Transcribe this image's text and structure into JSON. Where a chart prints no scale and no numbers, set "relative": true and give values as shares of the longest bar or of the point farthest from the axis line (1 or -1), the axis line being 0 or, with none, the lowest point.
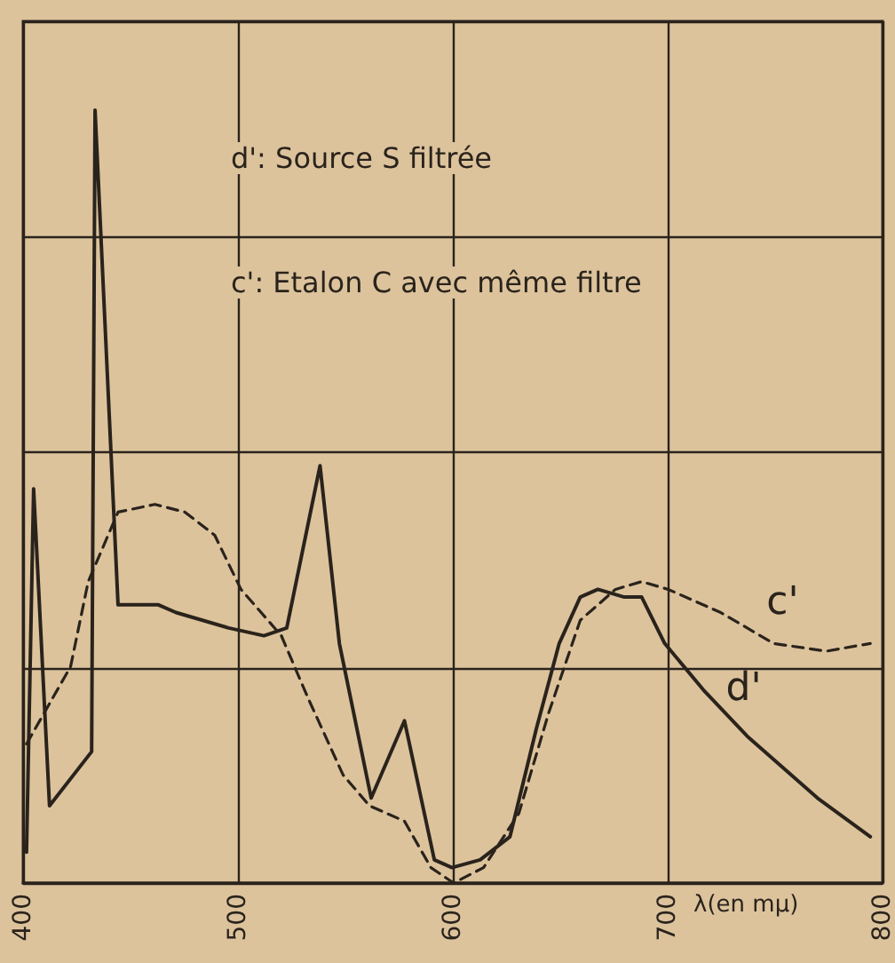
{
  "chart_data": {
    "type": "line",
    "relative": true,
    "xlabel": "λ(en mμ)",
    "xlim": [
      400,
      800
    ],
    "xticks": [
      400,
      500,
      600,
      700,
      800
    ],
    "grid": true,
    "legend": false,
    "marker": "none",
    "annotations": [
      "d': Source S filtrée",
      "c': Etalon C avec même filtre"
    ],
    "series": [
      {
        "name": "d'",
        "color": "#2a231c",
        "line_style": "solid",
        "x": [
          401.6,
          404.9,
          412.3,
          431.9,
          433.5,
          444.2,
          463.0,
          471.2,
          495.7,
          512.1,
          522.7,
          538.2,
          547.2,
          562.0,
          577.5,
          591.4,
          599.6,
          612.7,
          626.6,
          638.9,
          649.5,
          659.3,
          667.5,
          679.8,
          687.9,
          698.6,
          716.6,
          737.0,
          769.7,
          794.3
        ],
        "values": [
          0.04,
          0.51,
          0.1,
          0.17,
          1,
          0.36,
          0.36,
          0.35,
          0.33,
          0.32,
          0.33,
          0.54,
          0.31,
          0.11,
          0.21,
          0.03,
          0.02,
          0.03,
          0.06,
          0.2,
          0.31,
          0.37,
          0.38,
          0.37,
          0.37,
          0.31,
          0.25,
          0.19,
          0.11,
          0.06
        ]
      },
      {
        "name": "c'",
        "color": "#2a231c",
        "line_style": "dashed",
        "x": [
          401.6,
          422.1,
          430.3,
          444.2,
          461.3,
          475.3,
          489.2,
          501.4,
          520.2,
          532.5,
          548.9,
          561.2,
          577.5,
          589.8,
          600.4,
          614.3,
          630.7,
          644.6,
          659.3,
          675.7,
          687.9,
          700.2,
          724.7,
          749.3,
          773.8,
          794.3
        ],
        "values": [
          0.18,
          0.28,
          0.39,
          0.48,
          0.49,
          0.48,
          0.45,
          0.38,
          0.32,
          0.24,
          0.14,
          0.1,
          0.08,
          0.02,
          0.0,
          0.02,
          0.09,
          0.22,
          0.34,
          0.38,
          0.39,
          0.38,
          0.35,
          0.31,
          0.3,
          0.31
        ]
      }
    ]
  }
}
